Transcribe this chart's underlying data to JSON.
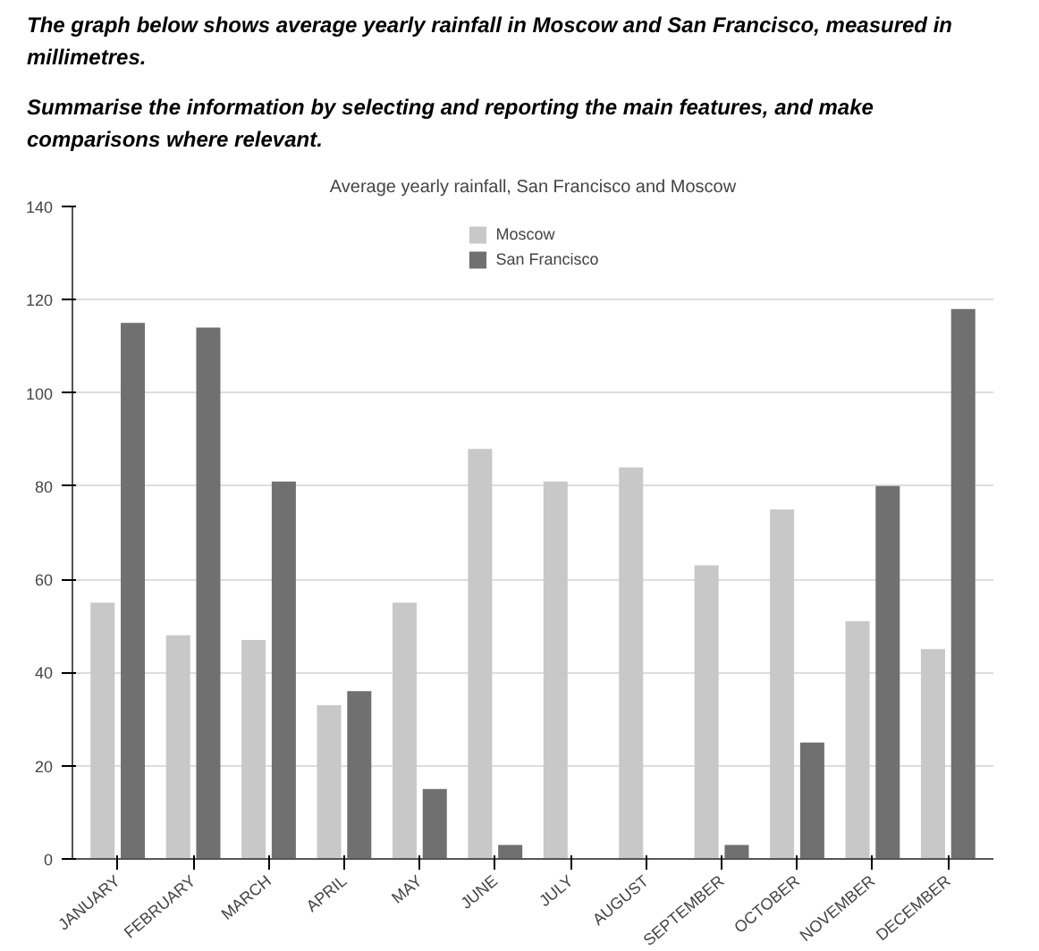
{
  "chart_data": {
    "type": "bar",
    "title": "Average yearly rainfall, San Francisco and Moscow",
    "annotations": [
      "The graph below shows average yearly rainfall in Moscow and San Francisco, measured in millimetres.",
      "Summarise the information by selecting and reporting the main features, and make comparisons where relevant."
    ],
    "categories": [
      "JANUARY",
      "FEBRUARY",
      "MARCH",
      "APRIL",
      "MAY",
      "JUNE",
      "JULY",
      "AUGUST",
      "SEPTEMBER",
      "OCTOBER",
      "NOVEMBER",
      "DECEMBER"
    ],
    "series": [
      {
        "name": "Moscow",
        "color": "#c8c8c8",
        "values": [
          55,
          48,
          47,
          33,
          55,
          88,
          81,
          84,
          63,
          75,
          51,
          45
        ]
      },
      {
        "name": "San Francisco",
        "color": "#707070",
        "values": [
          115,
          114,
          81,
          36,
          15,
          3,
          0,
          0,
          3,
          25,
          80,
          118
        ]
      }
    ],
    "ylim": [
      0,
      140
    ],
    "yticks": [
      0,
      20,
      40,
      60,
      80,
      100,
      120,
      140
    ],
    "grid": "y",
    "legend": "top"
  }
}
